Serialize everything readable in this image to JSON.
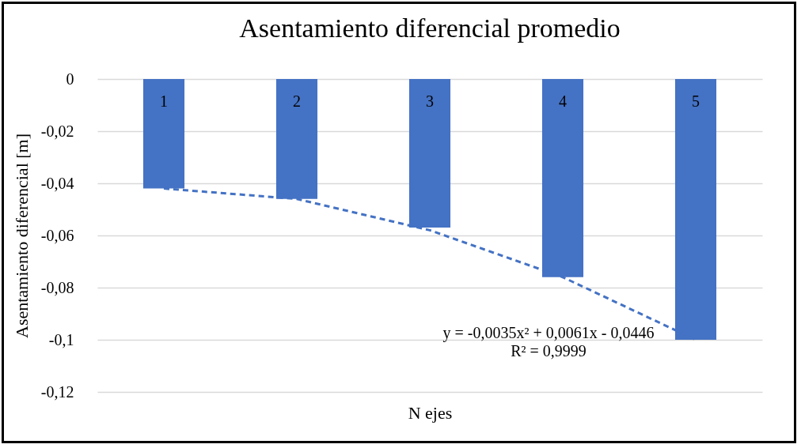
{
  "chart_data": {
    "type": "bar",
    "title": "Asentamiento diferencial promedio",
    "xlabel": "N ejes",
    "ylabel": "Asentamiento diferencial [m]",
    "categories": [
      "1",
      "2",
      "3",
      "4",
      "5"
    ],
    "series": [
      {
        "color": "#4472c4",
        "values": [
          -0.042,
          -0.046,
          -0.057,
          -0.076,
          -0.1
        ]
      },
      {
        "type": "line",
        "color": "#4472c4",
        "line_style": "dashed",
        "x": [
          "1",
          "2",
          "3",
          "4",
          "5"
        ],
        "values": [
          -0.042,
          -0.046,
          -0.058,
          -0.076,
          -0.1
        ]
      }
    ],
    "ylim": [
      -0.12,
      0
    ],
    "yticks": [
      {
        "value": -0.12,
        "label": "-0,12"
      },
      {
        "value": -0.1,
        "label": "-0,1"
      },
      {
        "value": -0.08,
        "label": "-0,08"
      },
      {
        "value": -0.06,
        "label": "-0,06"
      },
      {
        "value": -0.04,
        "label": "-0,04"
      },
      {
        "value": -0.02,
        "label": "-0,02"
      },
      0
    ],
    "grid": "y",
    "annotations": [
      "y = -0,0035x² + 0,0061x - 0,0446",
      "R² = 0,9999"
    ]
  }
}
